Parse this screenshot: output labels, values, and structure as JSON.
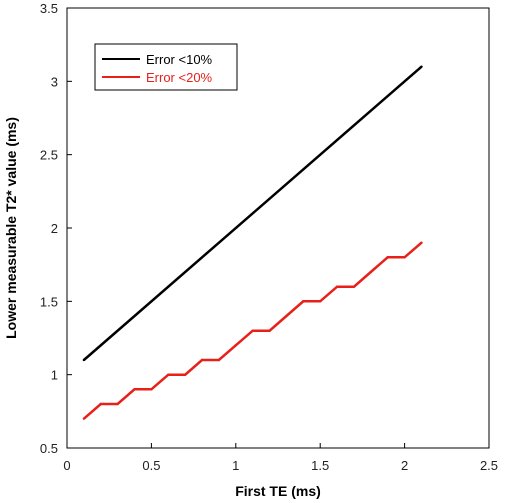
{
  "chart_data": {
    "type": "line",
    "title": "",
    "xlabel": "First TE  (ms)",
    "ylabel": "Lower measurable T2* value (ms)",
    "xlim": [
      0,
      2.5
    ],
    "ylim": [
      0.5,
      3.5
    ],
    "xticks": [
      "0",
      "0.5",
      "1",
      "1.5",
      "2",
      "2.5"
    ],
    "yticks": [
      "0.5",
      "1",
      "1.5",
      "2",
      "2.5",
      "3",
      "3.5"
    ],
    "grid": false,
    "legend_position": "top-left",
    "series": [
      {
        "name": "Error <10%",
        "color": "#000000",
        "x": [
          0.1,
          2.1
        ],
        "y": [
          1.1,
          3.1
        ]
      },
      {
        "name": "Error <20%",
        "color": "#e8201a",
        "x": [
          0.1,
          0.2,
          0.3,
          0.4,
          0.5,
          0.6,
          0.7,
          0.8,
          0.9,
          1.0,
          1.1,
          1.2,
          1.3,
          1.4,
          1.5,
          1.6,
          1.7,
          1.8,
          1.9,
          2.0,
          2.1
        ],
        "y": [
          0.7,
          0.8,
          0.8,
          0.9,
          0.9,
          1.0,
          1.0,
          1.1,
          1.1,
          1.2,
          1.3,
          1.3,
          1.4,
          1.5,
          1.5,
          1.6,
          1.6,
          1.7,
          1.8,
          1.8,
          1.9
        ]
      }
    ]
  }
}
